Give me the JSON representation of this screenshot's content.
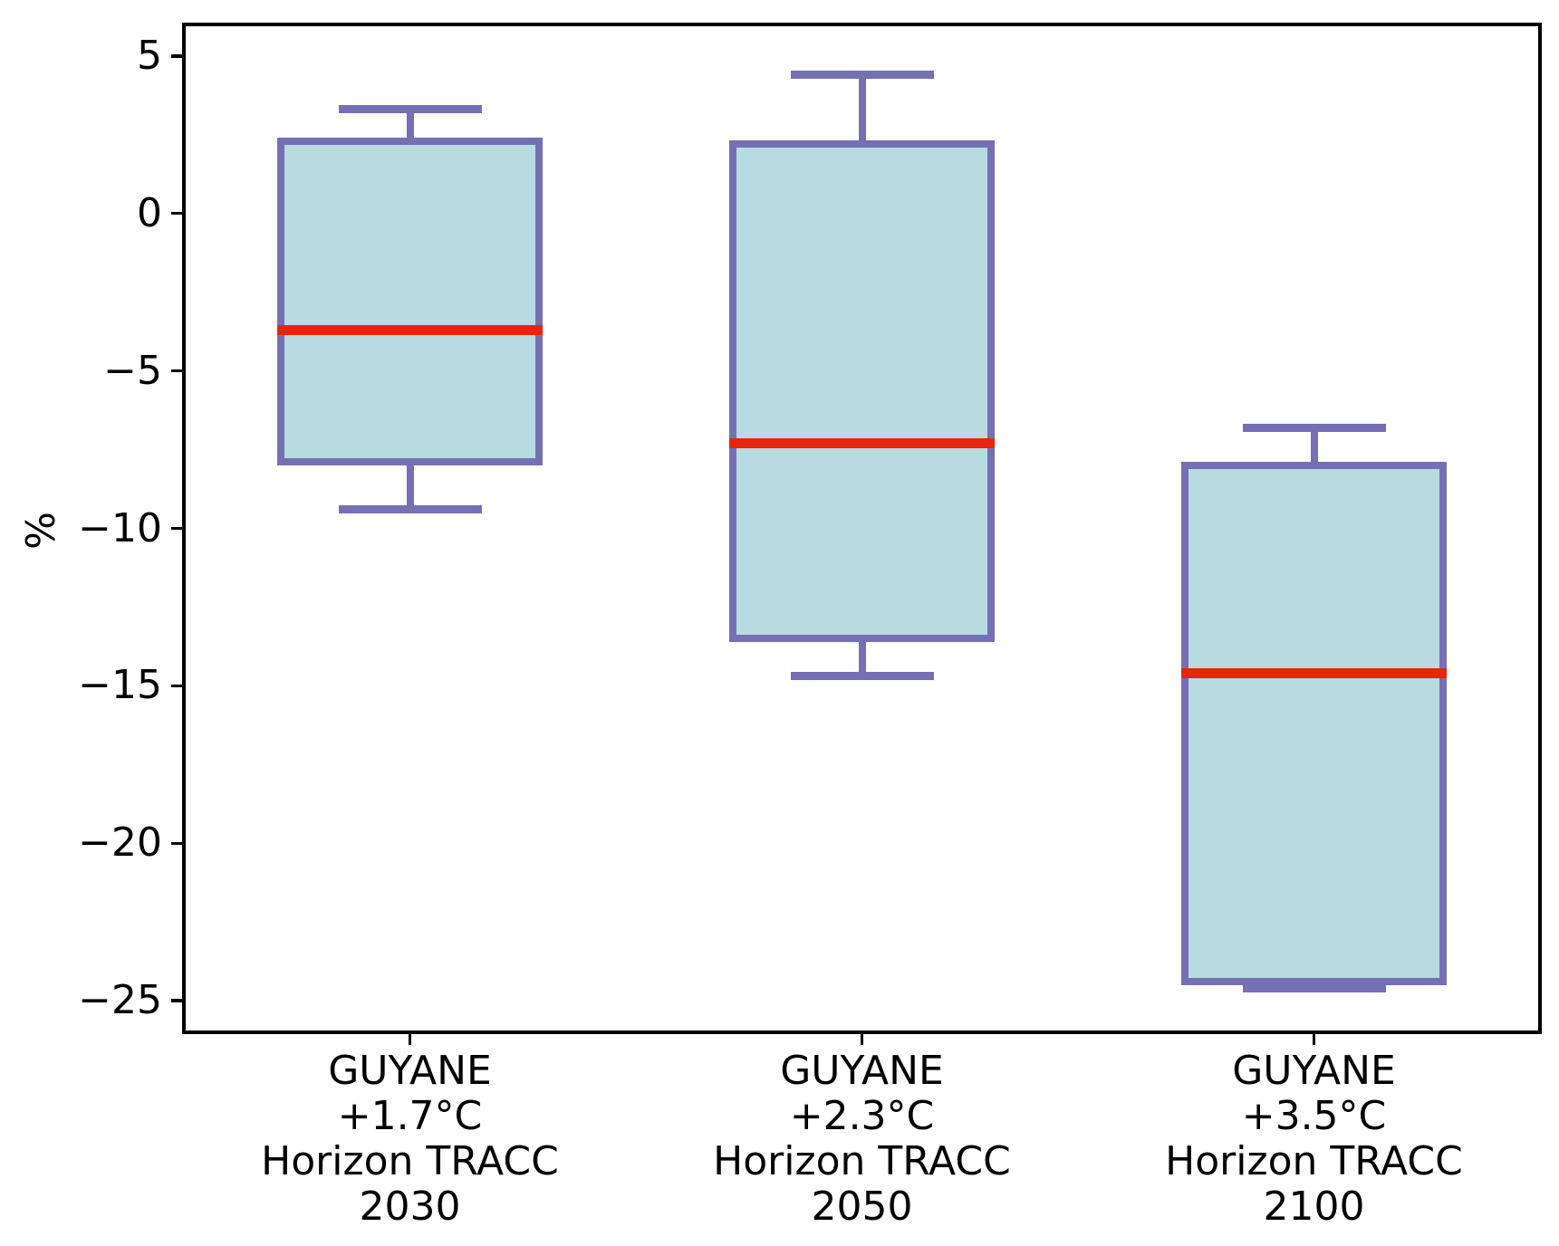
{
  "chart_data": {
    "type": "boxplot",
    "title": "",
    "xlabel": "",
    "ylabel": "%",
    "ylim": [
      -26,
      6
    ],
    "yticks": [
      5,
      0,
      -5,
      -10,
      -15,
      -20,
      -25
    ],
    "grid": false,
    "legend": null,
    "categories": [
      "GUYANE +1.7°C Horizon TRACC 2030",
      "GUYANE +2.3°C Horizon TRACC 2050",
      "GUYANE +3.5°C Horizon TRACC 2100"
    ],
    "series": [
      {
        "label_lines": [
          "GUYANE",
          "+1.7°C",
          "Horizon TRACC",
          "2030"
        ],
        "whisker_high": 3.3,
        "q3": 2.3,
        "median": -3.7,
        "q1": -7.9,
        "whisker_low": -9.4
      },
      {
        "label_lines": [
          "GUYANE",
          "+2.3°C",
          "Horizon TRACC",
          "2050"
        ],
        "whisker_high": 4.4,
        "q3": 2.2,
        "median": -7.3,
        "q1": -13.5,
        "whisker_low": -14.7
      },
      {
        "label_lines": [
          "GUYANE",
          "+3.5°C",
          "Horizon TRACC",
          "2100"
        ],
        "whisker_high": -6.8,
        "q3": -8.0,
        "median": -14.6,
        "q1": -24.4,
        "whisker_low": -24.6
      }
    ],
    "colors": {
      "box_edge": "#7570b3",
      "box_fill": "#b7dbe1",
      "median": "#e9230c",
      "axis": "#000000"
    }
  }
}
